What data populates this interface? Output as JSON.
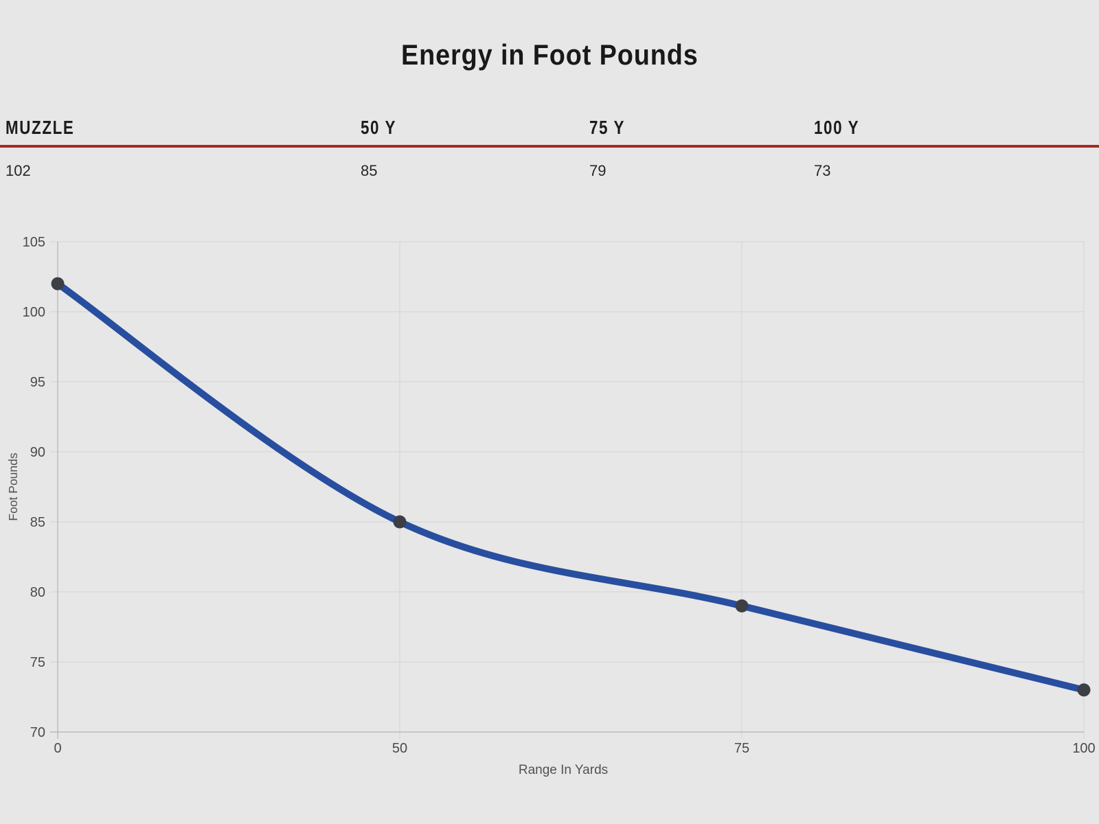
{
  "title": "Energy in Foot Pounds",
  "table": {
    "headers": [
      "MUZZLE",
      "50 Y",
      "75 Y",
      "100 Y"
    ],
    "values": [
      "102",
      "85",
      "79",
      "73"
    ]
  },
  "chart_data": {
    "type": "line",
    "title": "Energy in Foot Pounds",
    "categories": [
      "0",
      "50",
      "75",
      "100"
    ],
    "series": [
      {
        "name": "Energy in Foot Pounds",
        "values": [
          102,
          85,
          79,
          73
        ]
      }
    ],
    "xlabel": "Range In Yards",
    "ylabel": "Foot Pounds",
    "ylim": [
      70,
      105
    ],
    "yticks": [
      70,
      75,
      80,
      85,
      90,
      95,
      100,
      105
    ],
    "x_axis": "categorical-even-spacing",
    "grid": true,
    "legend": "none",
    "curve": "smooth",
    "colors": {
      "line": "#284e9f",
      "point": "#3c4046",
      "grid": "#d3d3d3",
      "axis": "#b2b2b2",
      "tick_text": "#4a4a4a",
      "axis_title_text": "#525252",
      "divider_red": "#a82a24",
      "background": "#e7e7e7",
      "title_text": "#191919"
    }
  }
}
